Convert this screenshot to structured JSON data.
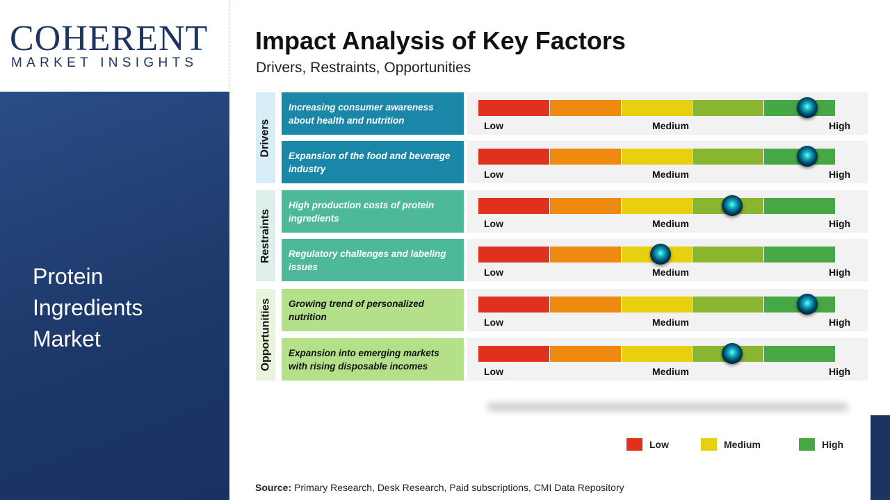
{
  "logo": {
    "line1": "COHERENT",
    "line2": "MARKET INSIGHTS"
  },
  "sidebar": {
    "title": "Protein Ingredients Market"
  },
  "header": {
    "title": "Impact Analysis of Key Factors",
    "subtitle": "Drivers, Restraints, Opportunities"
  },
  "scale": {
    "low": "Low",
    "medium": "Medium",
    "high": "High"
  },
  "colors": {
    "segments": [
      "#e0301e",
      "#ee8a10",
      "#e8cf10",
      "#8ab530",
      "#45a845"
    ],
    "Drivers": "#1a86a8",
    "Restraints": "#4db89a",
    "Opportunities": "#b5e08a"
  },
  "groups": [
    {
      "label": "Drivers",
      "factors": [
        {
          "text": "Increasing consumer awareness about health and nutrition",
          "impact": 0.92
        },
        {
          "text": "Expansion of the food and beverage industry",
          "impact": 0.92
        }
      ]
    },
    {
      "label": "Restraints",
      "factors": [
        {
          "text": "High production costs of protein ingredients",
          "impact": 0.71
        },
        {
          "text": "Regulatory challenges and labeling issues",
          "impact": 0.51
        }
      ]
    },
    {
      "label": "Opportunities",
      "factors": [
        {
          "text": "Growing trend of personalized nutrition",
          "impact": 0.92
        },
        {
          "text": "Expansion into emerging markets with rising disposable incomes",
          "impact": 0.71
        }
      ]
    }
  ],
  "legend": [
    {
      "label": "Low",
      "color": "#e0301e"
    },
    {
      "label": "Medium",
      "color": "#e8cf10"
    },
    {
      "label": "High",
      "color": "#45a845"
    }
  ],
  "source": {
    "label": "Source:",
    "text": " Primary Research, Desk Research, Paid subscriptions, CMI Data Repository"
  }
}
